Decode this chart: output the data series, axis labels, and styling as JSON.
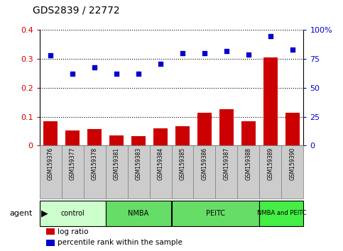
{
  "title": "GDS2839 / 22772",
  "samples": [
    "GSM159376",
    "GSM159377",
    "GSM159378",
    "GSM159381",
    "GSM159383",
    "GSM159384",
    "GSM159385",
    "GSM159386",
    "GSM159387",
    "GSM159388",
    "GSM159389",
    "GSM159390"
  ],
  "log_ratio": [
    0.085,
    0.052,
    0.057,
    0.035,
    0.033,
    0.06,
    0.068,
    0.113,
    0.125,
    0.085,
    0.305,
    0.113
  ],
  "percentile_rank": [
    78,
    62,
    68,
    62,
    62,
    71,
    80,
    80,
    82,
    79,
    95,
    83
  ],
  "bar_color": "#cc0000",
  "dot_color": "#0000cc",
  "ylim_left": [
    0.0,
    0.4
  ],
  "ylim_right": [
    0,
    100
  ],
  "yticks_left": [
    0.0,
    0.1,
    0.2,
    0.3,
    0.4
  ],
  "yticks_right": [
    0,
    25,
    50,
    75,
    100
  ],
  "ytick_labels_left": [
    "0",
    "0.1",
    "0.2",
    "0.3",
    "0.4"
  ],
  "ytick_labels_right": [
    "0",
    "25",
    "50",
    "75",
    "100%"
  ],
  "groups": [
    {
      "label": "control",
      "start": 0,
      "end": 2,
      "color": "#ccffcc"
    },
    {
      "label": "NMBA",
      "start": 3,
      "end": 5,
      "color": "#66dd66"
    },
    {
      "label": "PEITC",
      "start": 6,
      "end": 9,
      "color": "#66dd66"
    },
    {
      "label": "NMBA and PEITC",
      "start": 10,
      "end": 11,
      "color": "#44ee44"
    }
  ],
  "agent_label": "agent",
  "legend_log_ratio": "log ratio",
  "legend_percentile": "percentile rank within the sample",
  "background_color": "#ffffff",
  "tick_box_color": "#cccccc",
  "tick_box_edge": "#888888"
}
